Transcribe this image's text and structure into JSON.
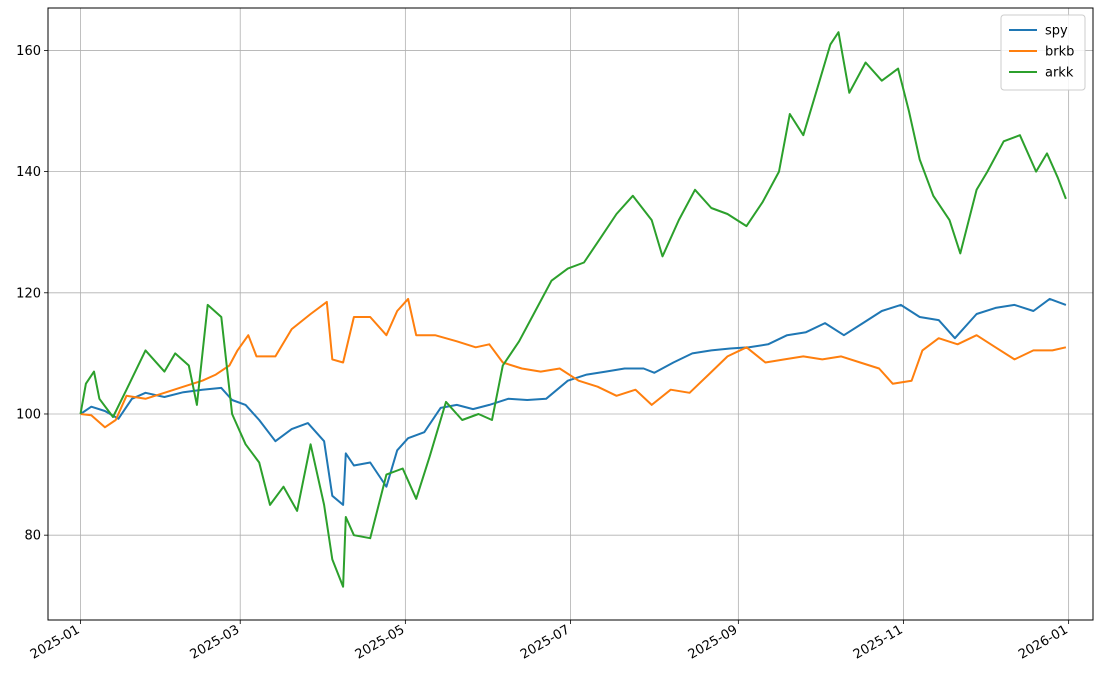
{
  "chart_data": {
    "type": "line",
    "title": "",
    "xlabel": "",
    "ylabel": "",
    "x_range": [
      "2024-12-20",
      "2026-01-10"
    ],
    "ylim": [
      66,
      167
    ],
    "grid": true,
    "legend_position": "top-right",
    "x_ticks": [
      "2025-01",
      "2025-03",
      "2025-05",
      "2025-07",
      "2025-09",
      "2025-11",
      "2026-01"
    ],
    "y_ticks": [
      80,
      100,
      120,
      140,
      160
    ],
    "series": [
      {
        "name": "spy",
        "color": "#1f77b4",
        "points": [
          [
            "2025-01-01",
            100
          ],
          [
            "2025-01-05",
            101.2
          ],
          [
            "2025-01-10",
            100.5
          ],
          [
            "2025-01-15",
            99.2
          ],
          [
            "2025-01-20",
            102.5
          ],
          [
            "2025-01-25",
            103.5
          ],
          [
            "2025-02-01",
            102.8
          ],
          [
            "2025-02-08",
            103.6
          ],
          [
            "2025-02-15",
            104
          ],
          [
            "2025-02-22",
            104.3
          ],
          [
            "2025-02-26",
            102.3
          ],
          [
            "2025-03-03",
            101.5
          ],
          [
            "2025-03-08",
            99
          ],
          [
            "2025-03-14",
            95.5
          ],
          [
            "2025-03-20",
            97.5
          ],
          [
            "2025-03-26",
            98.5
          ],
          [
            "2025-04-01",
            95.5
          ],
          [
            "2025-04-04",
            86.5
          ],
          [
            "2025-04-08",
            85
          ],
          [
            "2025-04-09",
            93.5
          ],
          [
            "2025-04-12",
            91.5
          ],
          [
            "2025-04-18",
            92
          ],
          [
            "2025-04-24",
            88
          ],
          [
            "2025-04-28",
            94
          ],
          [
            "2025-05-02",
            96
          ],
          [
            "2025-05-08",
            97
          ],
          [
            "2025-05-14",
            101
          ],
          [
            "2025-05-20",
            101.5
          ],
          [
            "2025-05-26",
            100.8
          ],
          [
            "2025-06-01",
            101.5
          ],
          [
            "2025-06-08",
            102.5
          ],
          [
            "2025-06-15",
            102.3
          ],
          [
            "2025-06-22",
            102.5
          ],
          [
            "2025-06-30",
            105.5
          ],
          [
            "2025-07-07",
            106.5
          ],
          [
            "2025-07-14",
            107
          ],
          [
            "2025-07-21",
            107.5
          ],
          [
            "2025-07-28",
            107.5
          ],
          [
            "2025-08-01",
            106.8
          ],
          [
            "2025-08-08",
            108.5
          ],
          [
            "2025-08-15",
            110
          ],
          [
            "2025-08-22",
            110.5
          ],
          [
            "2025-08-29",
            110.8
          ],
          [
            "2025-09-05",
            111
          ],
          [
            "2025-09-12",
            111.5
          ],
          [
            "2025-09-19",
            113
          ],
          [
            "2025-09-26",
            113.5
          ],
          [
            "2025-10-03",
            115
          ],
          [
            "2025-10-10",
            113
          ],
          [
            "2025-10-17",
            115
          ],
          [
            "2025-10-24",
            117
          ],
          [
            "2025-10-31",
            118
          ],
          [
            "2025-11-07",
            116
          ],
          [
            "2025-11-14",
            115.5
          ],
          [
            "2025-11-20",
            112.5
          ],
          [
            "2025-11-28",
            116.5
          ],
          [
            "2025-12-05",
            117.5
          ],
          [
            "2025-12-12",
            118
          ],
          [
            "2025-12-19",
            117
          ],
          [
            "2025-12-25",
            119
          ],
          [
            "2025-12-31",
            118
          ]
        ]
      },
      {
        "name": "brkb",
        "color": "#ff7f0e",
        "points": [
          [
            "2025-01-01",
            100
          ],
          [
            "2025-01-05",
            99.8
          ],
          [
            "2025-01-10",
            97.8
          ],
          [
            "2025-01-14",
            99
          ],
          [
            "2025-01-18",
            103
          ],
          [
            "2025-01-25",
            102.5
          ],
          [
            "2025-02-01",
            103.5
          ],
          [
            "2025-02-08",
            104.5
          ],
          [
            "2025-02-15",
            105.5
          ],
          [
            "2025-02-20",
            106.5
          ],
          [
            "2025-02-25",
            108
          ],
          [
            "2025-02-28",
            110.5
          ],
          [
            "2025-03-04",
            113
          ],
          [
            "2025-03-07",
            109.5
          ],
          [
            "2025-03-14",
            109.5
          ],
          [
            "2025-03-20",
            114
          ],
          [
            "2025-03-27",
            116.5
          ],
          [
            "2025-04-02",
            118.5
          ],
          [
            "2025-04-04",
            109
          ],
          [
            "2025-04-08",
            108.5
          ],
          [
            "2025-04-12",
            116
          ],
          [
            "2025-04-18",
            116
          ],
          [
            "2025-04-24",
            113
          ],
          [
            "2025-04-28",
            117
          ],
          [
            "2025-05-02",
            119
          ],
          [
            "2025-05-05",
            113
          ],
          [
            "2025-05-12",
            113
          ],
          [
            "2025-05-20",
            112
          ],
          [
            "2025-05-27",
            111
          ],
          [
            "2025-06-01",
            111.5
          ],
          [
            "2025-06-06",
            108.5
          ],
          [
            "2025-06-13",
            107.5
          ],
          [
            "2025-06-20",
            107
          ],
          [
            "2025-06-27",
            107.5
          ],
          [
            "2025-07-04",
            105.5
          ],
          [
            "2025-07-11",
            104.5
          ],
          [
            "2025-07-18",
            103
          ],
          [
            "2025-07-25",
            104
          ],
          [
            "2025-07-31",
            101.5
          ],
          [
            "2025-08-07",
            104
          ],
          [
            "2025-08-14",
            103.5
          ],
          [
            "2025-08-21",
            106.5
          ],
          [
            "2025-08-28",
            109.5
          ],
          [
            "2025-09-04",
            111
          ],
          [
            "2025-09-11",
            108.5
          ],
          [
            "2025-09-18",
            109
          ],
          [
            "2025-09-25",
            109.5
          ],
          [
            "2025-10-02",
            109
          ],
          [
            "2025-10-09",
            109.5
          ],
          [
            "2025-10-16",
            108.5
          ],
          [
            "2025-10-23",
            107.5
          ],
          [
            "2025-10-28",
            105
          ],
          [
            "2025-11-04",
            105.5
          ],
          [
            "2025-11-08",
            110.5
          ],
          [
            "2025-11-14",
            112.5
          ],
          [
            "2025-11-21",
            111.5
          ],
          [
            "2025-11-28",
            113
          ],
          [
            "2025-12-05",
            111
          ],
          [
            "2025-12-12",
            109
          ],
          [
            "2025-12-19",
            110.5
          ],
          [
            "2025-12-26",
            110.5
          ],
          [
            "2025-12-31",
            111
          ]
        ]
      },
      {
        "name": "arkk",
        "color": "#2ca02c",
        "points": [
          [
            "2025-01-01",
            100
          ],
          [
            "2025-01-03",
            105
          ],
          [
            "2025-01-06",
            107
          ],
          [
            "2025-01-08",
            102.5
          ],
          [
            "2025-01-13",
            99.5
          ],
          [
            "2025-01-18",
            104
          ],
          [
            "2025-01-25",
            110.5
          ],
          [
            "2025-02-01",
            107
          ],
          [
            "2025-02-05",
            110
          ],
          [
            "2025-02-10",
            108
          ],
          [
            "2025-02-13",
            101.5
          ],
          [
            "2025-02-17",
            118
          ],
          [
            "2025-02-22",
            116
          ],
          [
            "2025-02-26",
            100
          ],
          [
            "2025-03-03",
            95
          ],
          [
            "2025-03-08",
            92
          ],
          [
            "2025-03-12",
            85
          ],
          [
            "2025-03-17",
            88
          ],
          [
            "2025-03-22",
            84
          ],
          [
            "2025-03-27",
            95
          ],
          [
            "2025-04-01",
            85
          ],
          [
            "2025-04-04",
            76
          ],
          [
            "2025-04-08",
            71.5
          ],
          [
            "2025-04-09",
            83
          ],
          [
            "2025-04-12",
            80
          ],
          [
            "2025-04-18",
            79.5
          ],
          [
            "2025-04-24",
            90
          ],
          [
            "2025-04-30",
            91
          ],
          [
            "2025-05-05",
            86
          ],
          [
            "2025-05-10",
            93
          ],
          [
            "2025-05-16",
            102
          ],
          [
            "2025-05-22",
            99
          ],
          [
            "2025-05-28",
            100
          ],
          [
            "2025-06-02",
            99
          ],
          [
            "2025-06-06",
            108
          ],
          [
            "2025-06-12",
            112
          ],
          [
            "2025-06-18",
            117
          ],
          [
            "2025-06-24",
            122
          ],
          [
            "2025-06-30",
            124
          ],
          [
            "2025-07-06",
            125
          ],
          [
            "2025-07-12",
            129
          ],
          [
            "2025-07-18",
            133
          ],
          [
            "2025-07-24",
            136
          ],
          [
            "2025-07-31",
            132
          ],
          [
            "2025-08-04",
            126
          ],
          [
            "2025-08-10",
            132
          ],
          [
            "2025-08-16",
            137
          ],
          [
            "2025-08-22",
            134
          ],
          [
            "2025-08-28",
            133
          ],
          [
            "2025-09-04",
            131
          ],
          [
            "2025-09-10",
            135
          ],
          [
            "2025-09-16",
            140
          ],
          [
            "2025-09-20",
            149.5
          ],
          [
            "2025-09-25",
            146
          ],
          [
            "2025-10-01",
            155
          ],
          [
            "2025-10-05",
            161
          ],
          [
            "2025-10-08",
            163
          ],
          [
            "2025-10-12",
            153
          ],
          [
            "2025-10-18",
            158
          ],
          [
            "2025-10-24",
            155
          ],
          [
            "2025-10-30",
            157
          ],
          [
            "2025-11-03",
            150
          ],
          [
            "2025-11-07",
            142
          ],
          [
            "2025-11-12",
            136
          ],
          [
            "2025-11-18",
            132
          ],
          [
            "2025-11-22",
            126.5
          ],
          [
            "2025-11-28",
            137
          ],
          [
            "2025-12-02",
            140
          ],
          [
            "2025-12-08",
            145
          ],
          [
            "2025-12-14",
            146
          ],
          [
            "2025-12-20",
            140
          ],
          [
            "2025-12-24",
            143
          ],
          [
            "2025-12-28",
            139
          ],
          [
            "2025-12-31",
            135.5
          ]
        ]
      }
    ]
  }
}
